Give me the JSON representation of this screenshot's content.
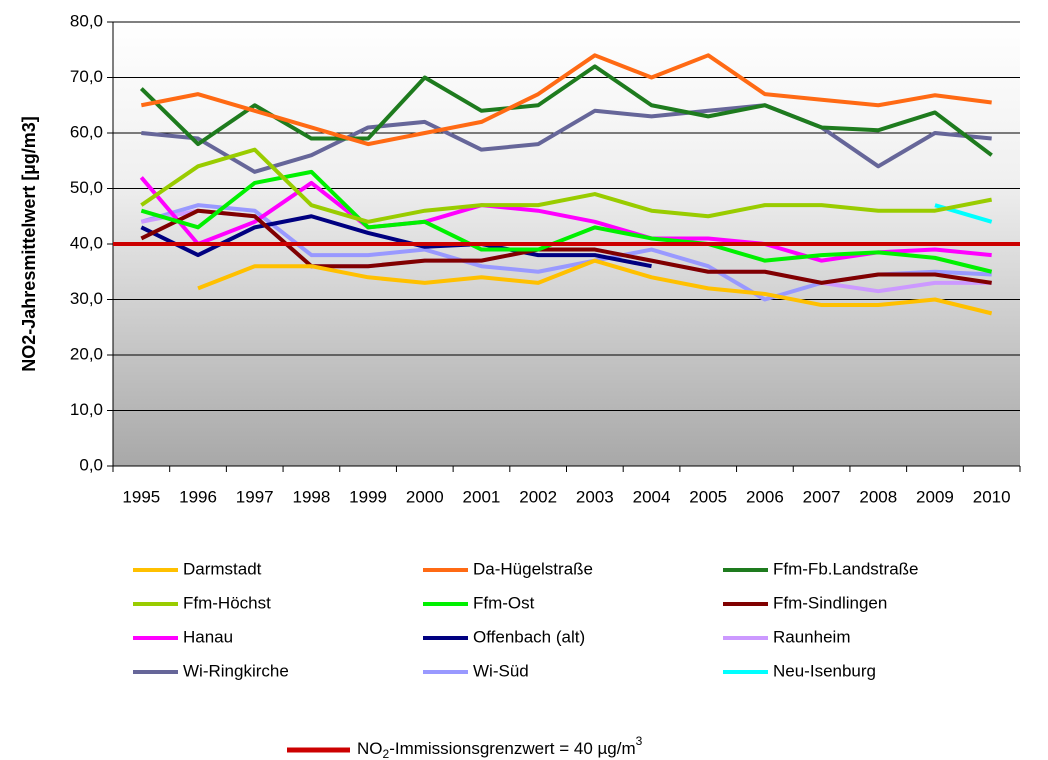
{
  "chart_data": {
    "type": "line",
    "y_label": "NO2-Jahresmittelwert [µg/m3]",
    "categories": [
      "1995",
      "1996",
      "1997",
      "1998",
      "1999",
      "2000",
      "2001",
      "2002",
      "2003",
      "2004",
      "2005",
      "2006",
      "2007",
      "2008",
      "2009",
      "2010"
    ],
    "ylim": [
      0,
      80
    ],
    "yticks": [
      {
        "value": 0,
        "label": "0,0"
      },
      {
        "value": 10,
        "label": "10,0"
      },
      {
        "value": 20,
        "label": "20,0"
      },
      {
        "value": 30,
        "label": "30,0"
      },
      {
        "value": 40,
        "label": "40,0"
      },
      {
        "value": 50,
        "label": "50,0"
      },
      {
        "value": 60,
        "label": "60,0"
      },
      {
        "value": 70,
        "label": "70,0"
      },
      {
        "value": 80,
        "label": "80,0"
      }
    ],
    "series": [
      {
        "name": "Darmstadt",
        "color": "#FFC000",
        "values": [
          null,
          32,
          36,
          36,
          34,
          33,
          34,
          33,
          37,
          34,
          32,
          31,
          29,
          29,
          30,
          27.5
        ]
      },
      {
        "name": "Da-Hügelstraße",
        "color": "#FF6A14",
        "values": [
          65,
          67,
          64,
          61,
          58,
          60,
          62,
          67,
          74,
          70,
          74,
          67,
          66,
          65,
          66.8,
          65.5
        ]
      },
      {
        "name": "Ffm-Fb.Landstraße",
        "color": "#1E7B1E",
        "values": [
          68,
          58,
          65,
          59,
          59,
          70,
          64,
          65,
          72,
          65,
          63,
          65,
          61,
          60.5,
          63.7,
          56
        ]
      },
      {
        "name": "Ffm-Höchst",
        "color": "#99CC00",
        "values": [
          47,
          54,
          57,
          47,
          44,
          46,
          47,
          47,
          49,
          46,
          45,
          47,
          47,
          46,
          46,
          48
        ]
      },
      {
        "name": "Ffm-Ost",
        "color": "#00F000",
        "values": [
          46,
          43,
          51,
          53,
          43,
          44,
          39,
          39,
          43,
          41,
          40,
          37,
          38,
          38.5,
          37.5,
          35
        ]
      },
      {
        "name": "Ffm-Sindlingen",
        "color": "#800000",
        "values": [
          41,
          46,
          45,
          36,
          36,
          37,
          37,
          39,
          39,
          37,
          35,
          35,
          33,
          34.5,
          34.5,
          33
        ]
      },
      {
        "name": "Hanau",
        "color": "#FF00FF",
        "values": [
          52,
          40,
          44,
          51,
          43,
          44,
          47,
          46,
          44,
          41,
          41,
          40,
          37,
          38.5,
          39,
          38
        ]
      },
      {
        "name": "Offenbach (alt)",
        "color": "#000080",
        "values": [
          43,
          38,
          43,
          45,
          42,
          39.5,
          40,
          38,
          38,
          36,
          null,
          null,
          null,
          null,
          null,
          null
        ]
      },
      {
        "name": "Raunheim",
        "color": "#CC99FF",
        "values": [
          44,
          46,
          45,
          36,
          36,
          37,
          37,
          39,
          39,
          37,
          35,
          35,
          33,
          31.5,
          33,
          33
        ]
      },
      {
        "name": "Wi-Ringkirche",
        "color": "#666699",
        "values": [
          60,
          59,
          53,
          56,
          61,
          62,
          57,
          58,
          64,
          63,
          64,
          65,
          61,
          54,
          60,
          59
        ]
      },
      {
        "name": "Wi-Süd",
        "color": "#9999FF",
        "values": [
          44,
          47,
          46,
          38,
          38,
          39,
          36,
          35,
          37,
          39,
          36,
          30,
          33,
          34.5,
          35,
          34.5
        ]
      },
      {
        "name": "Neu-Isenburg",
        "color": "#00FFFF",
        "values": [
          null,
          null,
          null,
          null,
          null,
          null,
          null,
          null,
          null,
          null,
          null,
          null,
          null,
          null,
          47,
          44
        ]
      }
    ],
    "limit": {
      "value": 40,
      "color": "#CC0000",
      "label_parts": [
        "NO",
        "2",
        "-Immissionsgrenzwert = 40 µg/m",
        "3"
      ]
    }
  }
}
